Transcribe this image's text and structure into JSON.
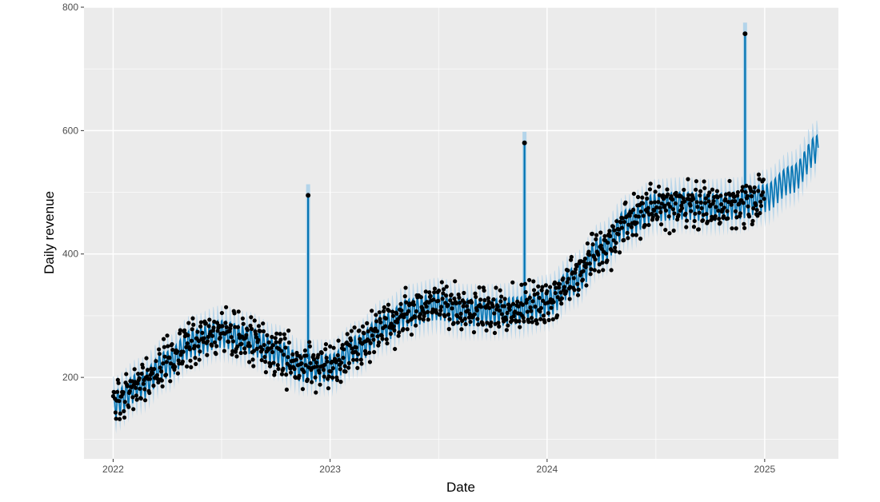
{
  "chart_data": {
    "type": "line",
    "title": "",
    "xlabel": "Date",
    "ylabel": "Daily revenue",
    "x_range": [
      "2021-11-13",
      "2025-05-05"
    ],
    "ylim": [
      68,
      800
    ],
    "x_ticks": [
      {
        "date": "2022-01-01",
        "label": "2022"
      },
      {
        "date": "2023-01-01",
        "label": "2023"
      },
      {
        "date": "2024-01-01",
        "label": "2024"
      },
      {
        "date": "2025-01-01",
        "label": "2025"
      }
    ],
    "y_ticks": [
      200,
      400,
      600,
      800
    ],
    "grid": true,
    "legend": "none",
    "history_end": "2024-12-31",
    "forecast_end": "2025-04-01",
    "trend_knots": [
      {
        "date": "2022-01-01",
        "value": 155
      },
      {
        "date": "2022-02-15",
        "value": 185
      },
      {
        "date": "2022-04-01",
        "value": 220
      },
      {
        "date": "2022-05-15",
        "value": 255
      },
      {
        "date": "2022-07-01",
        "value": 270
      },
      {
        "date": "2022-08-15",
        "value": 260
      },
      {
        "date": "2022-10-01",
        "value": 240
      },
      {
        "date": "2022-11-15",
        "value": 215
      },
      {
        "date": "2023-01-01",
        "value": 215
      },
      {
        "date": "2023-02-15",
        "value": 245
      },
      {
        "date": "2023-04-01",
        "value": 280
      },
      {
        "date": "2023-05-15",
        "value": 305
      },
      {
        "date": "2023-07-01",
        "value": 315
      },
      {
        "date": "2023-08-15",
        "value": 305
      },
      {
        "date": "2023-10-01",
        "value": 305
      },
      {
        "date": "2023-11-15",
        "value": 308
      },
      {
        "date": "2024-01-01",
        "value": 320
      },
      {
        "date": "2024-02-15",
        "value": 355
      },
      {
        "date": "2024-04-01",
        "value": 405
      },
      {
        "date": "2024-05-15",
        "value": 450
      },
      {
        "date": "2024-07-01",
        "value": 475
      },
      {
        "date": "2024-08-15",
        "value": 478
      },
      {
        "date": "2024-10-01",
        "value": 475
      },
      {
        "date": "2024-11-15",
        "value": 478
      },
      {
        "date": "2025-01-01",
        "value": 490
      },
      {
        "date": "2025-02-15",
        "value": 520
      },
      {
        "date": "2025-04-01",
        "value": 570
      }
    ],
    "weekly_amplitude": 22,
    "interval_halfwidth": 25,
    "spikes": [
      {
        "date": "2022-11-25",
        "value": 495,
        "base": 230
      },
      {
        "date": "2023-11-24",
        "value": 580,
        "base": 320
      },
      {
        "date": "2024-11-29",
        "value": 757,
        "base": 490
      }
    ],
    "colors": {
      "panel": "#ebebeb",
      "grid": "#ffffff",
      "forecast": "#0072b2",
      "interval": "#b3d4ea",
      "points": "#000000"
    }
  }
}
